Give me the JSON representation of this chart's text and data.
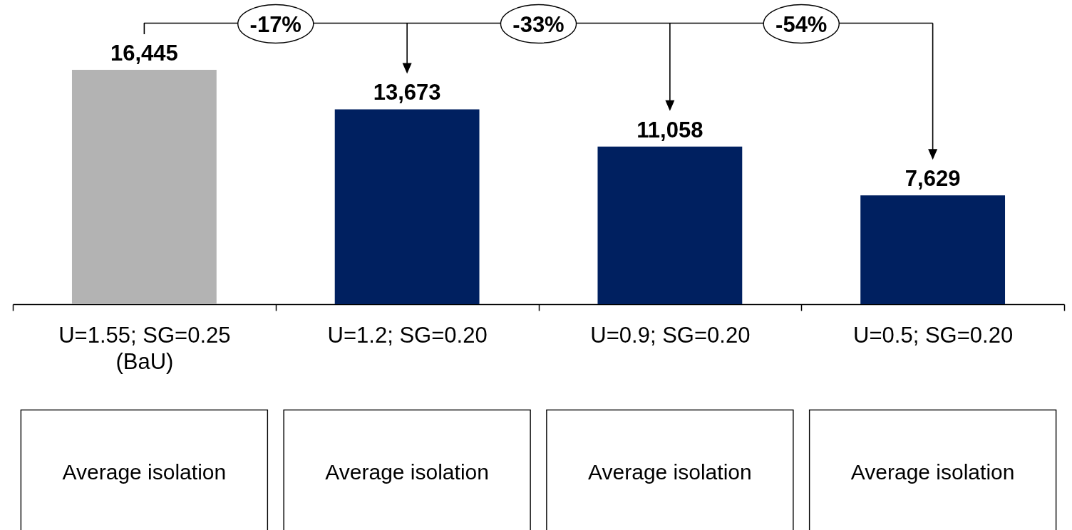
{
  "chart_data": {
    "type": "bar",
    "categories": [
      "U=1.55; SG=0.25\n(BaU)",
      "U=1.2; SG=0.20",
      "U=0.9; SG=0.20",
      "U=0.5; SG=0.20"
    ],
    "values": [
      16445,
      13673,
      11058,
      7629
    ],
    "value_labels": [
      "16,445",
      "13,673",
      "11,058",
      "7,629"
    ],
    "colors": [
      "#b3b3b3",
      "#002060",
      "#002060",
      "#002060"
    ],
    "annotations": [
      "-17%",
      "-33%",
      "-54%",
      "Average isolation",
      "Average isolation",
      "Average isolation",
      "Average isolation"
    ]
  }
}
